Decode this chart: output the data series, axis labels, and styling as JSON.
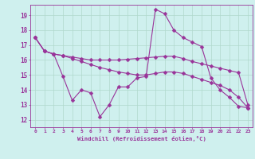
{
  "xlabel": "Windchill (Refroidissement éolien,°C)",
  "bg_color": "#cff0ee",
  "grid_color": "#b0d8cc",
  "line_color": "#993399",
  "x_ticks": [
    0,
    1,
    2,
    3,
    4,
    5,
    6,
    7,
    8,
    9,
    10,
    11,
    12,
    13,
    14,
    15,
    16,
    17,
    18,
    19,
    20,
    21,
    22,
    23
  ],
  "ylim": [
    11.5,
    19.7
  ],
  "xlim": [
    -0.5,
    23.5
  ],
  "yticks": [
    12,
    13,
    14,
    15,
    16,
    17,
    18,
    19
  ],
  "line1_x": [
    0,
    1,
    2,
    3,
    4,
    5,
    6,
    7,
    8,
    9,
    10,
    11,
    12,
    13,
    14,
    15,
    16,
    17,
    18,
    19,
    20,
    21,
    22,
    23
  ],
  "line1_y": [
    17.5,
    16.6,
    16.4,
    16.3,
    16.2,
    16.1,
    16.0,
    16.0,
    16.0,
    16.0,
    16.05,
    16.1,
    16.15,
    16.2,
    16.25,
    16.25,
    16.1,
    15.9,
    15.75,
    15.6,
    15.45,
    15.3,
    15.15,
    13.0
  ],
  "line2_x": [
    0,
    1,
    2,
    3,
    4,
    5,
    6,
    7,
    8,
    9,
    10,
    11,
    12,
    13,
    14,
    15,
    16,
    17,
    18,
    19,
    20,
    21,
    22,
    23
  ],
  "line2_y": [
    17.5,
    16.6,
    16.4,
    14.9,
    13.3,
    14.0,
    13.8,
    12.2,
    13.0,
    14.2,
    14.2,
    14.8,
    14.9,
    19.4,
    19.1,
    18.0,
    17.5,
    17.2,
    16.9,
    14.8,
    14.0,
    13.5,
    12.9,
    12.8
  ],
  "line3_x": [
    0,
    1,
    2,
    3,
    4,
    5,
    6,
    7,
    8,
    9,
    10,
    11,
    12,
    13,
    14,
    15,
    16,
    17,
    18,
    19,
    20,
    21,
    22,
    23
  ],
  "line3_y": [
    17.5,
    16.6,
    16.4,
    16.3,
    16.1,
    15.9,
    15.7,
    15.5,
    15.35,
    15.2,
    15.1,
    15.0,
    15.0,
    15.1,
    15.2,
    15.2,
    15.1,
    14.9,
    14.7,
    14.5,
    14.3,
    14.0,
    13.5,
    12.8
  ]
}
